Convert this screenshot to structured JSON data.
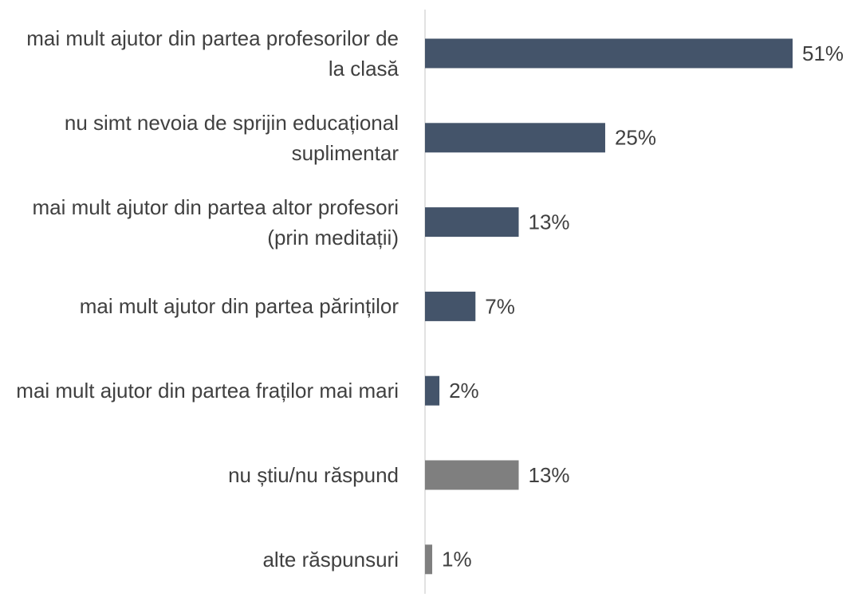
{
  "chart_data": {
    "type": "bar",
    "orientation": "horizontal",
    "categories": [
      "mai mult ajutor din partea profesorilor de la clasă",
      "nu simt nevoia de sprijin educațional suplimentar",
      "mai mult ajutor din partea altor profesori (prin meditații)",
      "mai mult ajutor din partea părinților",
      "mai mult ajutor din partea fraților mai mari",
      "nu știu/nu răspund",
      "alte răspunsuri"
    ],
    "values": [
      51,
      25,
      13,
      7,
      2,
      13,
      1
    ],
    "value_labels": [
      "51%",
      "25%",
      "13%",
      "7%",
      "2%",
      "13%",
      "1%"
    ],
    "colors": [
      "#44546a",
      "#44546a",
      "#44546a",
      "#44546a",
      "#44546a",
      "#7f7f7f",
      "#7f7f7f"
    ],
    "xlim": [
      0,
      51
    ]
  }
}
